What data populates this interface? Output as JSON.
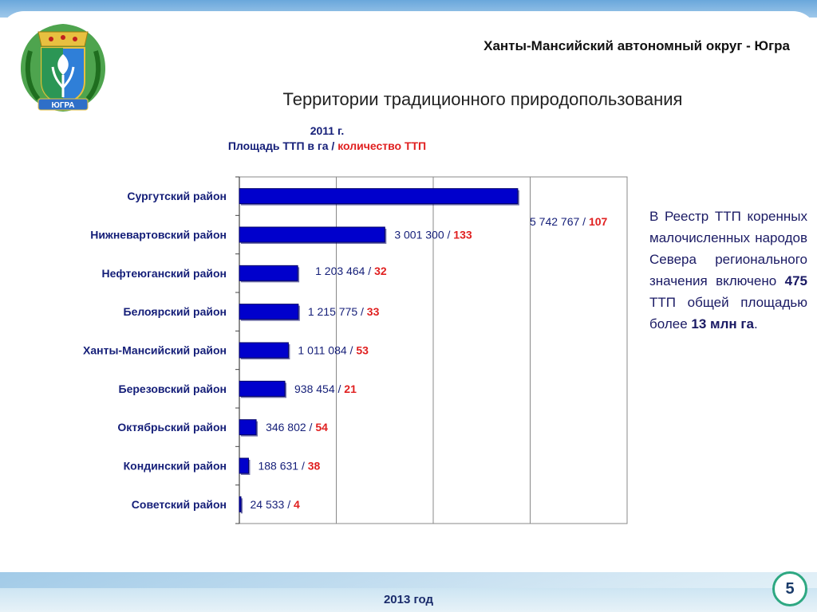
{
  "header": {
    "region_title": "Ханты-Мансийский автономный округ - Югра",
    "emblem_ribbon": "ЮГРА"
  },
  "slide": {
    "heading": "Территории традиционного природопользования"
  },
  "chart_data": {
    "type": "bar",
    "orientation": "horizontal",
    "title": "2011 г.",
    "subtitle_main": "Площадь ТТП в га /",
    "subtitle_red": "количество ТТП",
    "categories": [
      "Сургутский район",
      "Нижневартовский район",
      "Нефтеюганский район",
      "Белоярский район",
      "Ханты-Мансийский район",
      "Березовский район",
      "Октябрьский район",
      "Кондинский район",
      "Советский район"
    ],
    "series": [
      {
        "values": [
          5742767,
          3001300,
          1203464,
          1215775,
          1011084,
          938454,
          346802,
          188631,
          24533
        ]
      },
      {
        "values": [
          107,
          133,
          32,
          33,
          53,
          21,
          54,
          38,
          4
        ]
      }
    ],
    "area_labels": [
      "5 742 767",
      "3 001 300",
      "1 203 464",
      "1 215 775",
      "1 011 084",
      "938 454",
      "346 802",
      "188 631",
      "24 533"
    ],
    "count_labels": [
      "107",
      "133",
      "32",
      "33",
      "53",
      "21",
      "54",
      "38",
      "4"
    ],
    "xlim": [
      0,
      8000000
    ],
    "x_gridlines": [
      2000000,
      4000000,
      6000000,
      8000000
    ],
    "grid": true,
    "bar_color": "#0000cc",
    "count_color": "#e02020",
    "label_color": "#141e78"
  },
  "side_text": {
    "part1": "В Реестр ТТП коренных малочисленных народов Севера регионального значения включено",
    "count": "475",
    "part2": "ТТП общей площадью более",
    "area": "13 млн га",
    "end": "."
  },
  "footer": {
    "year": "2013 год",
    "page_number": "5"
  },
  "colors": {
    "accent_blue": "#6aa7db",
    "badge_border": "#2ea882",
    "text_dark_blue": "#141e78",
    "highlight_red": "#e02020"
  }
}
